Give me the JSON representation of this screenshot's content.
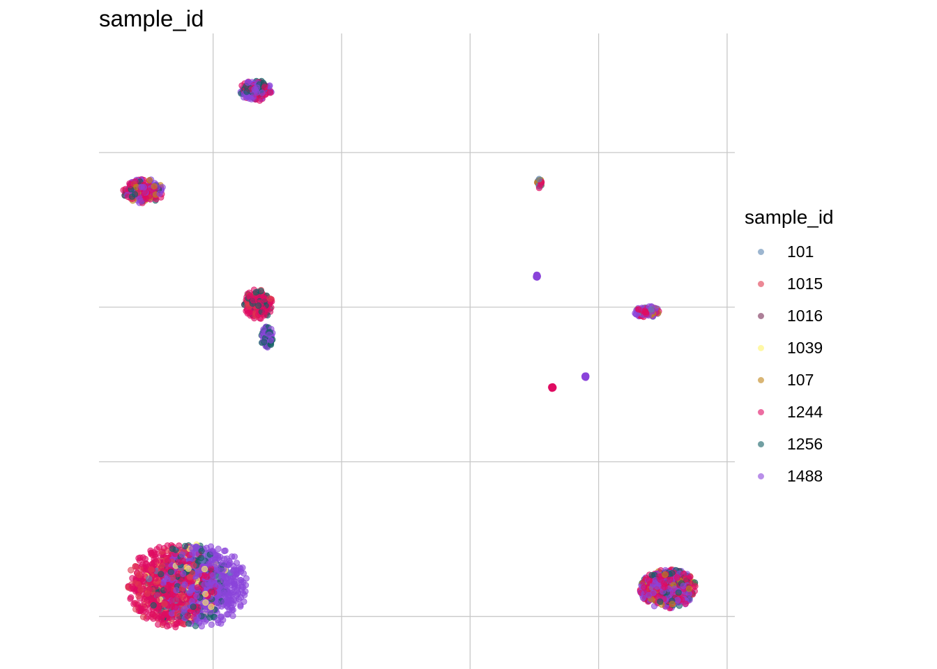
{
  "title": "sample_id",
  "legend": {
    "title": "sample_id",
    "items": [
      {
        "label": "101",
        "color": "#5B86B0"
      },
      {
        "label": "1015",
        "color": "#E0384F"
      },
      {
        "label": "1016",
        "color": "#762A53"
      },
      {
        "label": "1039",
        "color": "#FFF36B"
      },
      {
        "label": "107",
        "color": "#C08418"
      },
      {
        "label": "1244",
        "color": "#DF0C62"
      },
      {
        "label": "1256",
        "color": "#125F64"
      },
      {
        "label": "1488",
        "color": "#8B44DA"
      }
    ]
  },
  "chart_data": {
    "type": "scatter",
    "title": "sample_id",
    "xlabel": "",
    "ylabel": "",
    "xlim": [
      -0.888,
      4.06
    ],
    "ylim": [
      -0.34,
      3.77
    ],
    "x_gridlines": [
      0,
      1,
      2,
      3,
      4
    ],
    "y_gridlines": [
      0,
      1,
      2,
      3
    ],
    "grid": true,
    "legend_position": "right",
    "clusters": [
      {
        "center": [
          -0.2,
          0.2
        ],
        "spread": [
          0.35,
          0.27
        ],
        "mix": [
          [
            "1244",
            0.35
          ],
          [
            "1488",
            0.35
          ],
          [
            "1015",
            0.1
          ],
          [
            "1256",
            0.1
          ],
          [
            "101",
            0.05
          ],
          [
            "1039",
            0.05
          ]
        ]
      },
      {
        "center": [
          3.38,
          1.97
        ],
        "spread": [
          0.1,
          0.04
        ],
        "mix": [
          [
            "1488",
            0.5
          ],
          [
            "1244",
            0.3
          ],
          [
            "101",
            0.1
          ],
          [
            "107",
            0.1
          ]
        ]
      },
      {
        "center": [
          3.54,
          0.18
        ],
        "spread": [
          0.22,
          0.13
        ],
        "mix": [
          [
            "1244",
            0.45
          ],
          [
            "1488",
            0.3
          ],
          [
            "1256",
            0.15
          ],
          [
            "107",
            0.1
          ]
        ]
      },
      {
        "center": [
          -0.54,
          2.75
        ],
        "spread": [
          0.16,
          0.08
        ],
        "mix": [
          [
            "1244",
            0.5
          ],
          [
            "1488",
            0.3
          ],
          [
            "107",
            0.1
          ],
          [
            "1256",
            0.1
          ]
        ]
      },
      {
        "center": [
          0.33,
          3.4
        ],
        "spread": [
          0.13,
          0.07
        ],
        "mix": [
          [
            "1488",
            0.4
          ],
          [
            "1244",
            0.35
          ],
          [
            "1256",
            0.25
          ]
        ]
      },
      {
        "center": [
          0.35,
          2.02
        ],
        "spread": [
          0.11,
          0.1
        ],
        "mix": [
          [
            "1244",
            0.6
          ],
          [
            "1256",
            0.2
          ],
          [
            "1015",
            0.2
          ]
        ]
      },
      {
        "center": [
          0.42,
          1.81
        ],
        "spread": [
          0.05,
          0.07
        ],
        "mix": [
          [
            "1488",
            0.6
          ],
          [
            "1256",
            0.4
          ]
        ]
      },
      {
        "center": [
          2.54,
          2.8
        ],
        "spread": [
          0.02,
          0.03
        ],
        "mix": [
          [
            "1244",
            0.4
          ],
          [
            "101",
            0.3
          ],
          [
            "107",
            0.3
          ]
        ]
      },
      {
        "center": [
          2.52,
          2.2
        ],
        "spread": [
          0.01,
          0.01
        ],
        "mix": [
          [
            "1488",
            1.0
          ]
        ]
      },
      {
        "center": [
          2.64,
          1.48
        ],
        "spread": [
          0.01,
          0.01
        ],
        "mix": [
          [
            "1244",
            1.0
          ]
        ]
      },
      {
        "center": [
          2.9,
          1.55
        ],
        "spread": [
          0.01,
          0.01
        ],
        "mix": [
          [
            "1488",
            1.0
          ]
        ]
      }
    ]
  }
}
